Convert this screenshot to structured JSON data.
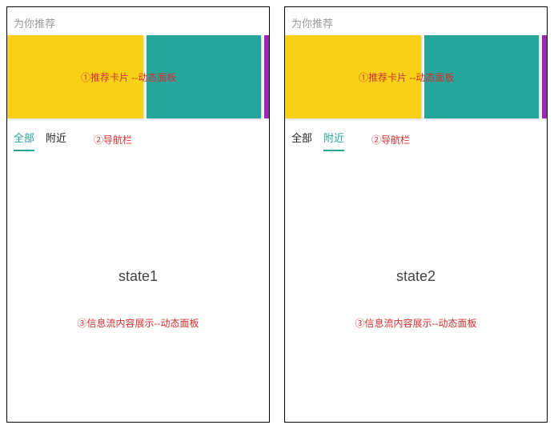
{
  "frames": [
    {
      "id": "state1",
      "active_tab_index": 0,
      "state_label": "state1"
    },
    {
      "id": "state2",
      "active_tab_index": 1,
      "state_label": "state2"
    }
  ],
  "header": {
    "title": "为你推荐"
  },
  "carousel": {
    "cards": [
      {
        "color": "#f7d117",
        "width": 176
      },
      {
        "color": "#26a69a",
        "width": 148
      },
      {
        "color": "#9c27b0",
        "width": 6
      }
    ],
    "annotation": "①推荐卡片 --动态面板"
  },
  "tabs": {
    "items": [
      "全部",
      "附近"
    ],
    "active_color": "#26a69a",
    "inactive_color": "#222222",
    "annotation": "②导航栏"
  },
  "feed": {
    "annotation": "③信息流内容展示--动态面板"
  },
  "colors": {
    "annotation_text": "#d32f2f",
    "section_header": "#999999",
    "frame_border": "#000000",
    "background": "#ffffff"
  },
  "typography": {
    "header_fontsize": 13,
    "tab_fontsize": 13,
    "annotation_fontsize": 12,
    "state_fontsize": 18
  }
}
